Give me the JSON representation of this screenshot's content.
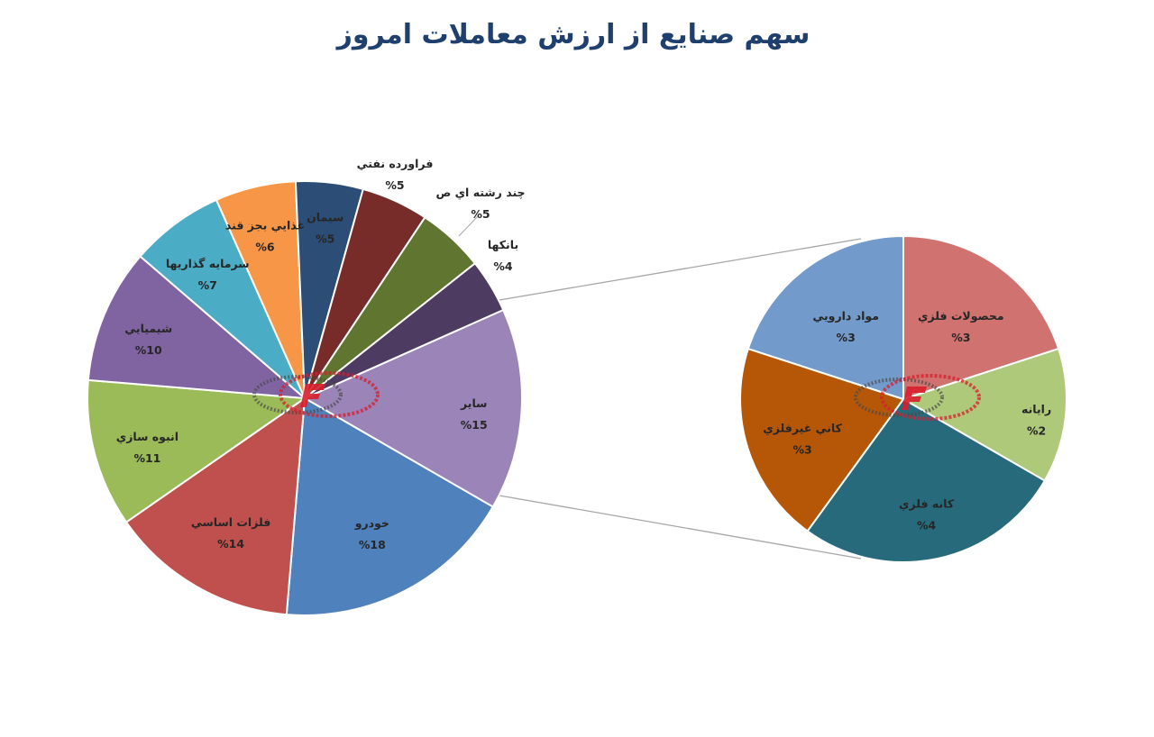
{
  "chart_data": [
    {
      "type": "pie",
      "title": "سهم صنايع از ارزش معاملات امروز",
      "unit_prefix": "%",
      "slices": [
        {
          "name": "ساير",
          "value": 15,
          "color": "#9a84b8"
        },
        {
          "name": "خودرو",
          "value": 18,
          "color": "#4f81bd"
        },
        {
          "name": "فلزات اساسي",
          "value": 14,
          "color": "#c0504d"
        },
        {
          "name": "انبوه سازي",
          "value": 11,
          "color": "#9bbb59"
        },
        {
          "name": "شيميايي",
          "value": 10,
          "color": "#8064a2"
        },
        {
          "name": "سرمايه گذاريها",
          "value": 7,
          "color": "#4bacc6"
        },
        {
          "name": "غذايي بجز قند",
          "value": 6,
          "color": "#f79646"
        },
        {
          "name": "سيمان",
          "value": 5,
          "color": "#2c4d75"
        },
        {
          "name": "فراورده نفتي",
          "value": 5,
          "color": "#772c2a"
        },
        {
          "name": "چند رشته اي ص",
          "value": 5,
          "color": "#5f7530"
        },
        {
          "name": "بانكها",
          "value": 4,
          "color": "#4d3b62"
        }
      ]
    },
    {
      "type": "pie",
      "unit_prefix": "%",
      "slices": [
        {
          "name": "محصولات فلزي",
          "value": 3,
          "color": "#d07370"
        },
        {
          "name": "رايانه",
          "value": 2,
          "color": "#afc97a"
        },
        {
          "name": "كانه فلزي",
          "value": 4,
          "color": "#276a7c"
        },
        {
          "name": "كاني غيرفلزي",
          "value": 3,
          "color": "#b65708"
        },
        {
          "name": "مواد دارويي",
          "value": 3,
          "color": "#729aca"
        }
      ]
    }
  ]
}
